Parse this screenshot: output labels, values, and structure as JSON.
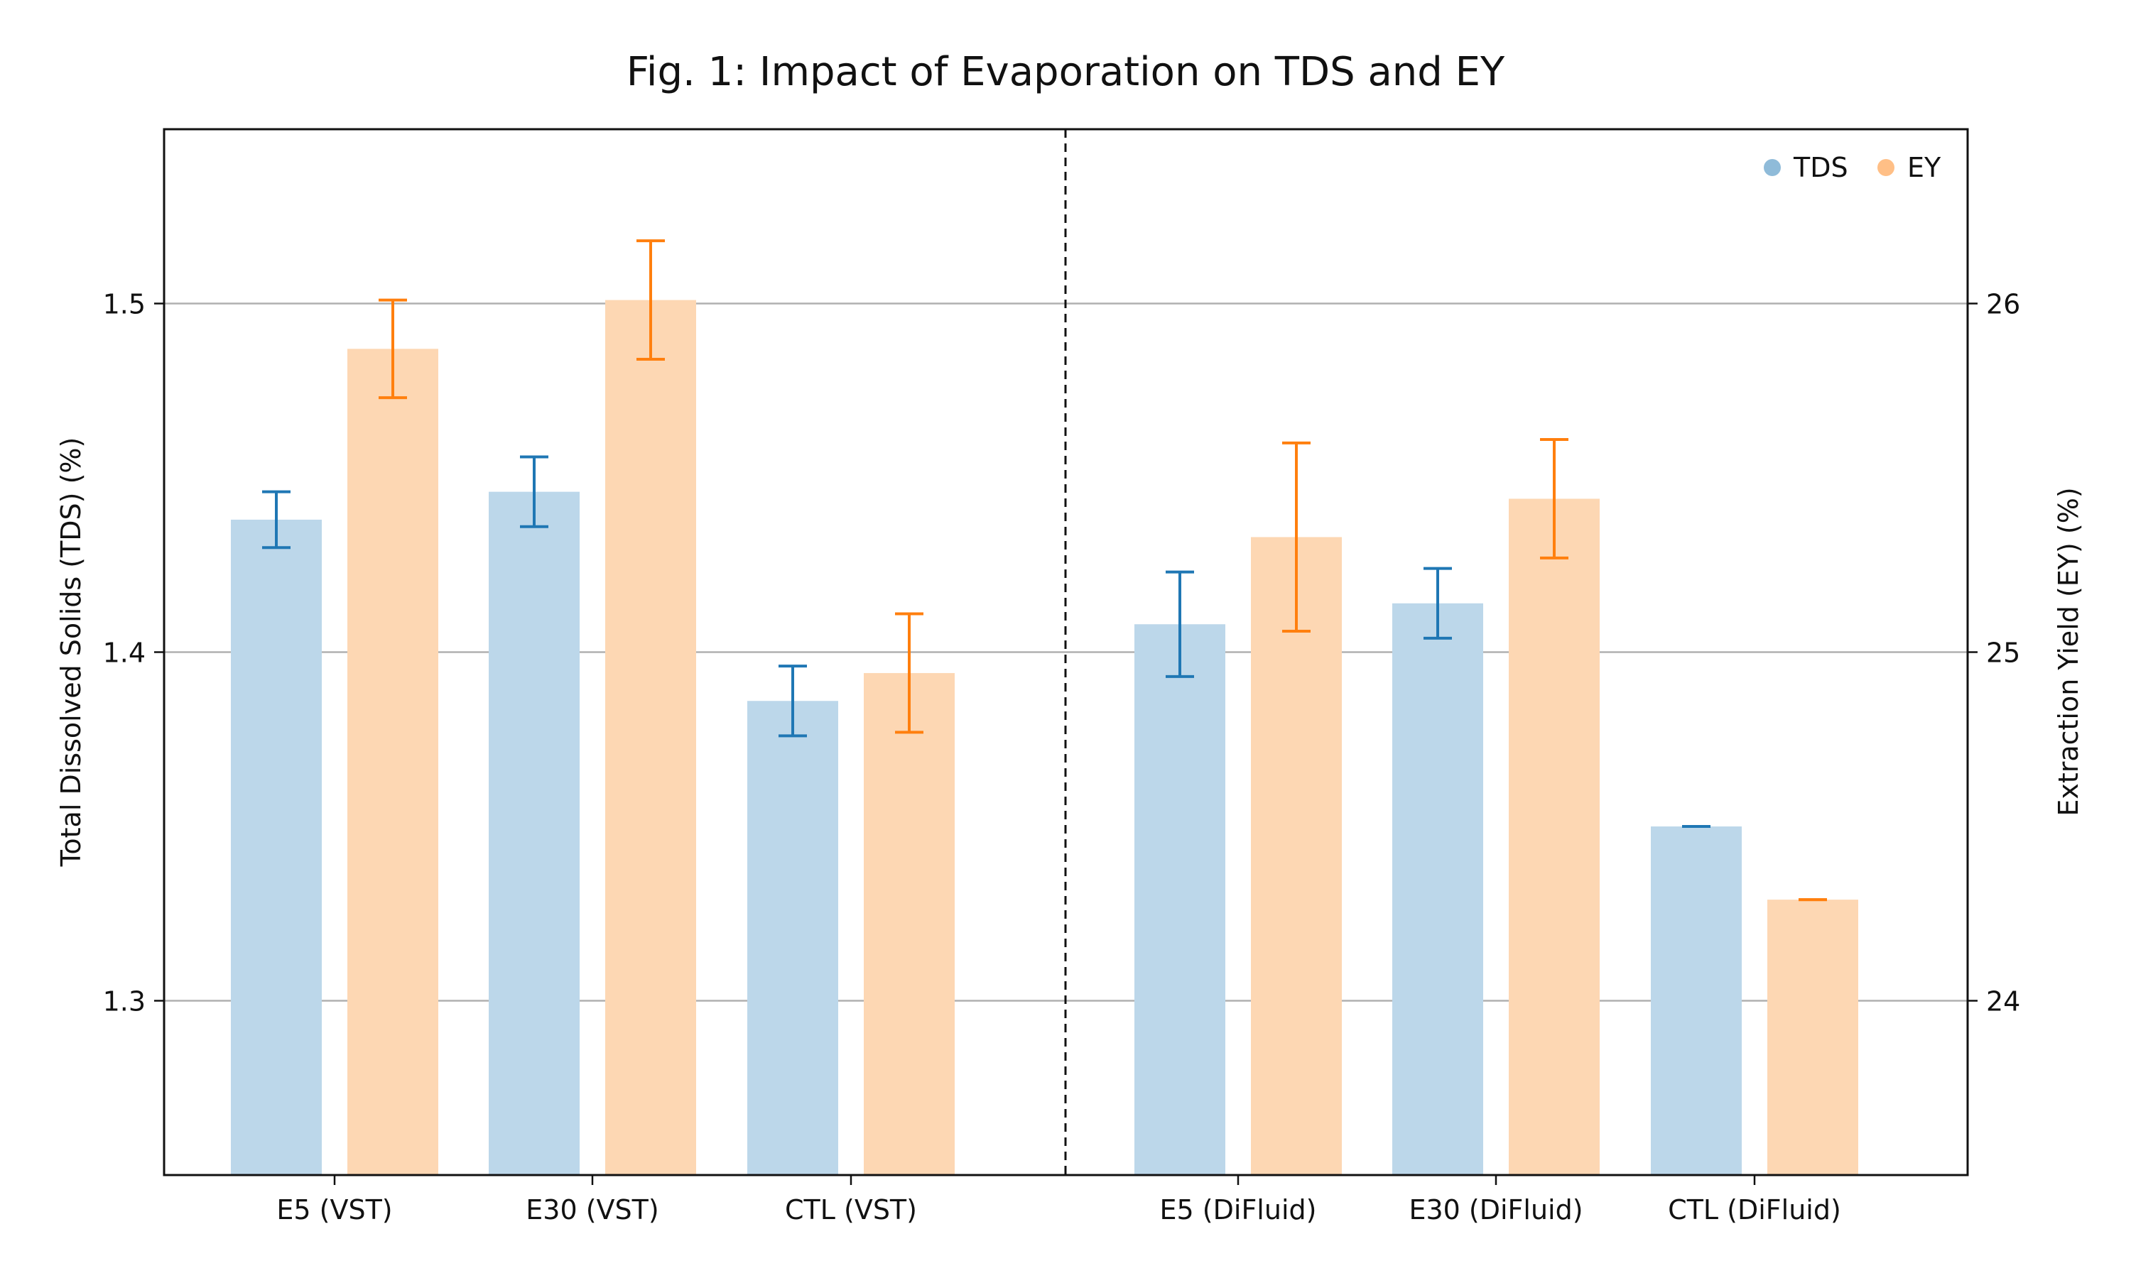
{
  "chart_data": {
    "type": "bar",
    "title": "Fig. 1: Impact of Evaporation on TDS and EY",
    "categories": [
      "E5 (VST)",
      "E30 (VST)",
      "CTL (VST)",
      "E5 (DiFluid)",
      "E30 (DiFluid)",
      "CTL (DiFluid)"
    ],
    "groups": [
      [
        "E5 (VST)",
        "E30 (VST)",
        "CTL (VST)"
      ],
      [
        "E5 (DiFluid)",
        "E30 (DiFluid)",
        "CTL (DiFluid)"
      ]
    ],
    "ylabel": "Total Dissolved Solids (TDS) (%)",
    "y2label": "Extraction Yield (EY) (%)",
    "ylim": [
      1.25,
      1.55
    ],
    "y2lim": [
      23.5,
      26.5
    ],
    "yticks": [
      "1.3",
      "1.4",
      "1.5"
    ],
    "y2ticks": [
      "24",
      "25",
      "26"
    ],
    "grid": true,
    "legend_position": "top-right",
    "series": [
      {
        "name": "TDS",
        "axis": "left",
        "color": "#bcd7ea",
        "error_color": "#1f77b4",
        "values": [
          1.438,
          1.446,
          1.386,
          1.408,
          1.414,
          1.35
        ],
        "errors": [
          0.008,
          0.01,
          0.01,
          0.015,
          0.01,
          0.0
        ]
      },
      {
        "name": "EY",
        "axis": "right",
        "color": "#fdd7b3",
        "error_color": "#ff7f0e",
        "values": [
          25.87,
          26.01,
          24.94,
          25.33,
          25.44,
          24.29
        ],
        "errors": [
          0.14,
          0.17,
          0.17,
          0.27,
          0.17,
          0.0
        ]
      }
    ]
  }
}
